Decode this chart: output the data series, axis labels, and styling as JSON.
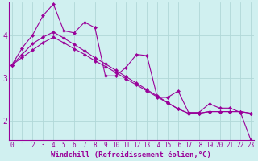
{
  "xlabel": "Windchill (Refroidissement éolien,°C)",
  "background_color": "#d0f0f0",
  "line_color": "#990099",
  "grid_color": "#b0d8d8",
  "x_ticks": [
    0,
    1,
    2,
    3,
    4,
    5,
    6,
    7,
    8,
    9,
    10,
    11,
    12,
    13,
    14,
    15,
    16,
    17,
    18,
    19,
    20,
    21,
    22,
    23
  ],
  "y_ticks": [
    2,
    3,
    4
  ],
  "xlim": [
    -0.3,
    23.3
  ],
  "ylim": [
    1.55,
    4.75
  ],
  "series1_x": [
    0,
    1,
    2,
    3,
    4,
    5,
    6,
    7,
    8,
    9,
    10,
    11,
    12,
    13,
    14,
    15,
    16,
    17,
    18,
    19,
    20,
    21,
    22,
    23
  ],
  "series1_y": [
    3.3,
    3.7,
    4.0,
    4.45,
    4.72,
    4.1,
    4.05,
    4.3,
    4.17,
    3.05,
    3.05,
    3.25,
    3.55,
    3.52,
    2.55,
    2.55,
    2.7,
    2.2,
    2.2,
    2.4,
    2.3,
    2.3,
    2.2,
    1.55
  ],
  "series2_x": [
    0,
    1,
    2,
    3,
    4,
    5,
    6,
    7,
    8,
    9,
    10,
    11,
    12,
    13,
    14,
    15,
    16,
    17,
    18,
    19,
    20,
    21,
    22,
    23
  ],
  "series2_y": [
    3.3,
    3.55,
    3.8,
    3.95,
    4.07,
    3.93,
    3.78,
    3.63,
    3.47,
    3.33,
    3.18,
    3.03,
    2.88,
    2.73,
    2.58,
    2.43,
    2.28,
    2.18,
    2.18,
    2.22,
    2.22,
    2.22,
    2.22,
    2.18
  ],
  "series3_x": [
    0,
    1,
    2,
    3,
    4,
    5,
    6,
    7,
    8,
    9,
    10,
    11,
    12,
    13,
    14,
    15,
    16,
    17,
    18,
    19,
    20,
    21,
    22,
    23
  ],
  "series3_y": [
    3.3,
    3.48,
    3.65,
    3.82,
    3.95,
    3.82,
    3.68,
    3.55,
    3.4,
    3.27,
    3.13,
    2.98,
    2.84,
    2.7,
    2.56,
    2.42,
    2.28,
    2.18,
    2.18,
    2.22,
    2.22,
    2.22,
    2.22,
    2.18
  ],
  "tick_fontsize": 5.5,
  "xlabel_fontsize": 6.5,
  "marker_size": 2.2,
  "line_width": 0.8
}
